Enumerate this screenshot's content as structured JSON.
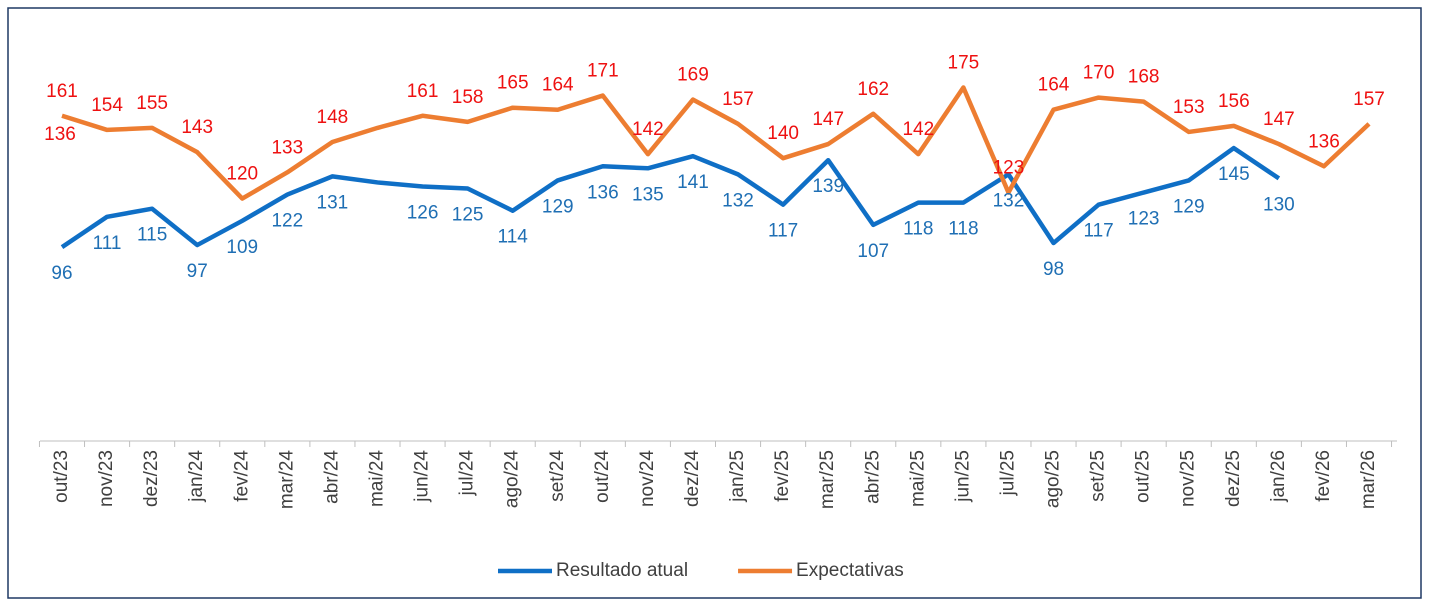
{
  "chart_data": {
    "type": "line",
    "categories": [
      "out/23",
      "nov/23",
      "dez/23",
      "jan/24",
      "fev/24",
      "mar/24",
      "abr/24",
      "mai/24",
      "jun/24",
      "jul/24",
      "ago/24",
      "set/24",
      "out/24",
      "nov/24",
      "dez/24",
      "jan/25",
      "fev/25",
      "mar/25",
      "abr/25",
      "mai/25",
      "jun/25",
      "jul/25",
      "ago/25",
      "set/25",
      "out/25",
      "nov/25",
      "dez/25",
      "jan/26",
      "fev/26",
      "mar/26"
    ],
    "ylim": [
      0,
      200
    ],
    "legend": "bottom",
    "series": [
      {
        "name": "Resultado atual",
        "color": "#0f6fc6",
        "label_color": "#1f6fb4",
        "values": [
          96,
          111,
          115,
          97,
          109,
          122,
          131,
          128,
          126,
          125,
          114,
          129,
          136,
          135,
          141,
          132,
          117,
          139,
          107,
          118,
          118,
          132,
          98,
          117,
          123,
          129,
          145,
          130,
          null,
          null
        ],
        "value_labels": [
          "96",
          "111",
          "115",
          "97",
          "109",
          "122",
          "131",
          null,
          "126",
          "125",
          "114",
          "129",
          "136",
          "135",
          "141",
          "132",
          "117",
          "139",
          "107",
          "118",
          "118",
          "132",
          "98",
          "117",
          "123",
          "129",
          "145",
          "130",
          null,
          null
        ]
      },
      {
        "name": "Expectativas",
        "color": "#ed7d31",
        "label_color": "#ee1111",
        "values": [
          161,
          154,
          155,
          143,
          120,
          133,
          148,
          155,
          161,
          158,
          165,
          164,
          171,
          142,
          169,
          157,
          140,
          147,
          162,
          142,
          175,
          123,
          164,
          170,
          168,
          153,
          156,
          147,
          136,
          157
        ],
        "value_labels": [
          "161",
          "154",
          "155",
          "143",
          "120",
          "133",
          "148",
          null,
          "161",
          "158",
          "165",
          "164",
          "171",
          "142",
          "169",
          "157",
          "140",
          "147",
          "162",
          "142",
          "175",
          "123",
          "164",
          "170",
          "168",
          "153",
          "156",
          "147",
          "136",
          "157"
        ]
      }
    ],
    "annotations": [
      "136"
    ]
  }
}
